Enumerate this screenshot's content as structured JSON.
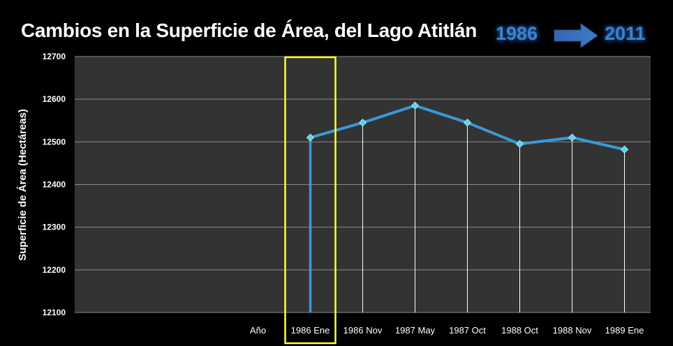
{
  "header": {
    "title": "Cambios en la Superficie de Área, del Lago Atitlán",
    "year_start": "1986",
    "year_end": "2011",
    "arrow_icon": "right-arrow-icon"
  },
  "colors": {
    "background": "#000000",
    "plot_area": "#333333",
    "gridline": "#8a8a8a",
    "series_line": "#3a9ad6",
    "marker": "#5fd0e8",
    "highlight_box": "#ffff33",
    "year_badge": "#3d82c9"
  },
  "chart_data": {
    "type": "line",
    "title": "Cambios en la Superficie de Área, del Lago Atitlán",
    "xlabel": "",
    "ylabel": "Superficie de Área (Hectáreas)",
    "categories": [
      "Año",
      "1986 Ene",
      "1986 Nov",
      "1987 May",
      "1987 Oct",
      "1988 Oct",
      "1988 Nov",
      "1989 Ene"
    ],
    "series": [
      {
        "values": [
          null,
          12510,
          12545,
          12585,
          12545,
          12495,
          12510,
          12482
        ]
      }
    ],
    "ylim": [
      12100,
      12700
    ],
    "yticks": [
      12100,
      12200,
      12300,
      12400,
      12500,
      12600,
      12700
    ],
    "grid": true,
    "legend": "none",
    "highlighted_category": "1986 Ene"
  }
}
